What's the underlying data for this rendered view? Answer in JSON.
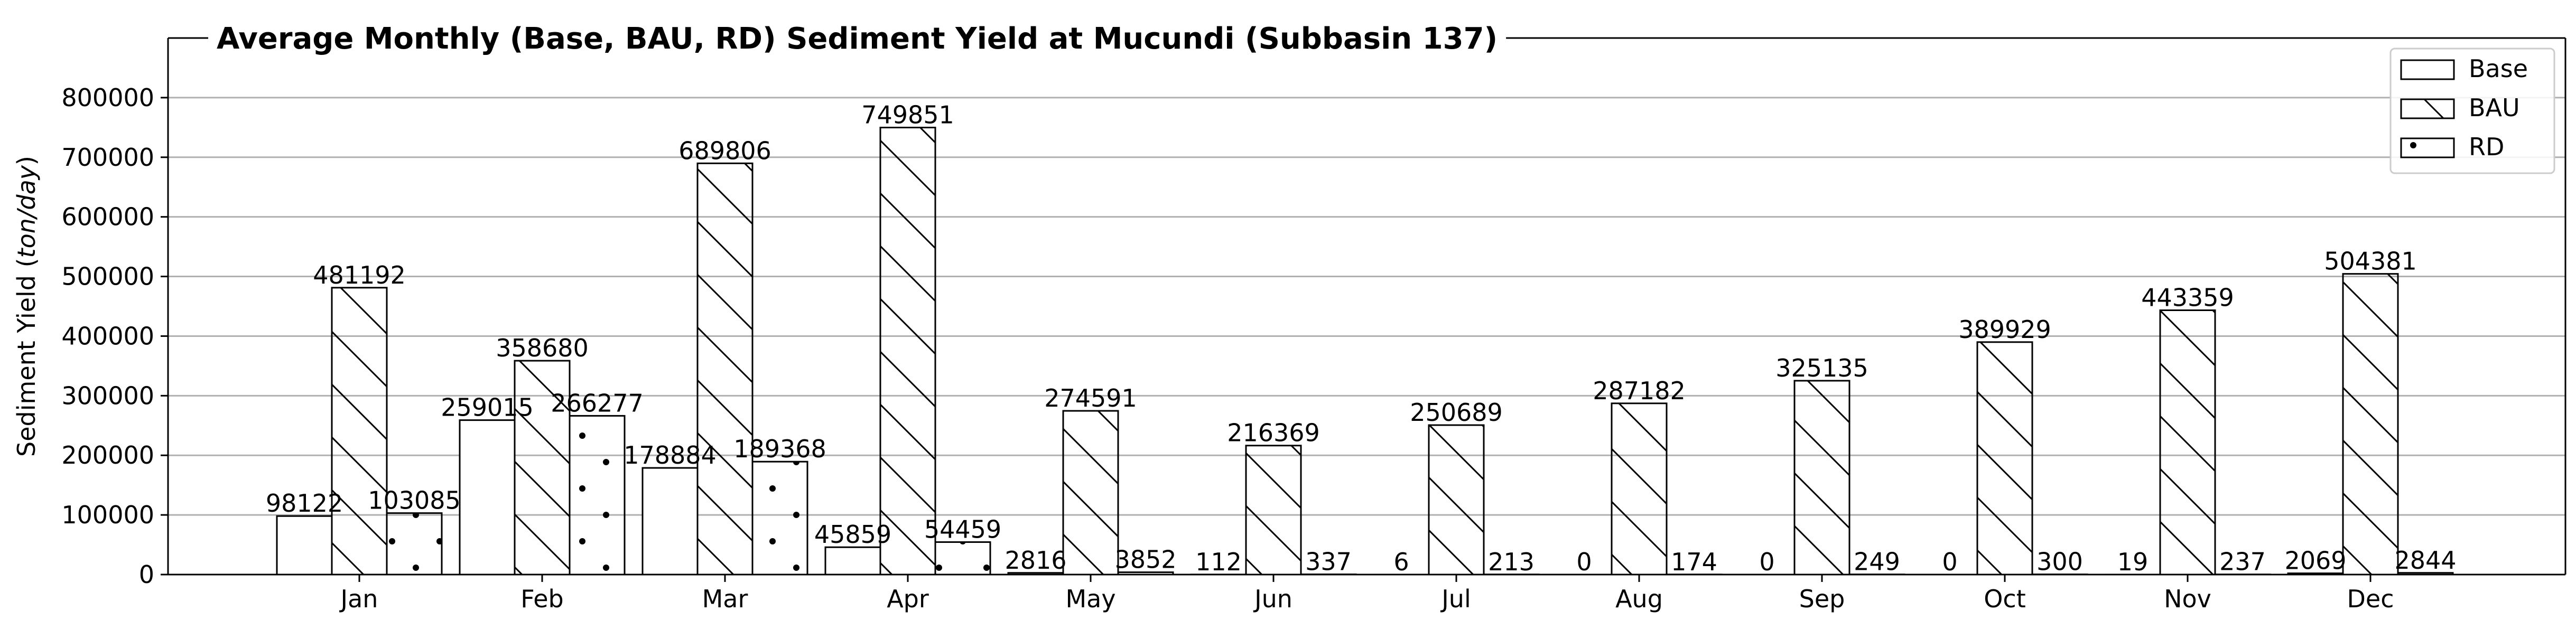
{
  "chart_data": {
    "type": "bar",
    "title": "Average Monthly (Base, BAU, RD) Sediment Yield  at Mucundi (Subbasin 137)",
    "xlabel": "",
    "ylabel_main": "Sediment Yield (",
    "ylabel_unit": "ton/day",
    "ylabel_close": ")",
    "categories": [
      "Jan",
      "Feb",
      "Mar",
      "Apr",
      "May",
      "Jun",
      "Jul",
      "Aug",
      "Sep",
      "Oct",
      "Nov",
      "Dec"
    ],
    "series": [
      {
        "name": "Base",
        "pattern": "none",
        "values": [
          98122,
          259015,
          178884,
          45859,
          2816,
          112,
          6,
          0,
          0,
          0,
          19,
          2069
        ],
        "labels": [
          "98122",
          "259015",
          "178884",
          "45859",
          "2816",
          "112",
          "6",
          "0",
          "0",
          "0",
          "19",
          "2069"
        ]
      },
      {
        "name": "BAU",
        "pattern": "diagonal",
        "values": [
          481192,
          358680,
          689806,
          749851,
          274591,
          216369,
          250689,
          287182,
          325135,
          389929,
          443359,
          504381
        ],
        "labels": [
          "481192",
          "358680",
          "689806",
          "749851",
          "274591",
          "216369",
          "250689",
          "287182",
          "325135",
          "389929",
          "443359",
          "504381"
        ]
      },
      {
        "name": "RD",
        "pattern": "dots",
        "values": [
          103085,
          266277,
          189368,
          54459,
          3852,
          337,
          213,
          174,
          249,
          300,
          237,
          2844
        ],
        "labels": [
          "103085",
          "266277",
          "189368",
          "54459",
          "3852",
          "337",
          "213",
          "174",
          "249",
          "300",
          "237",
          "2844"
        ]
      }
    ],
    "yticks": [
      0,
      100000,
      200000,
      300000,
      400000,
      500000,
      600000,
      700000,
      800000
    ],
    "ytick_labels": [
      "0",
      "100000",
      "200000",
      "300000",
      "400000",
      "500000",
      "600000",
      "700000",
      "800000"
    ],
    "ylim": [
      0,
      900000
    ],
    "grid": "horizontal",
    "legend_position": "top-right",
    "colors": {
      "bar_face": "#ffffff",
      "bar_edge": "#000000",
      "grid": "#b0b0b0"
    }
  }
}
